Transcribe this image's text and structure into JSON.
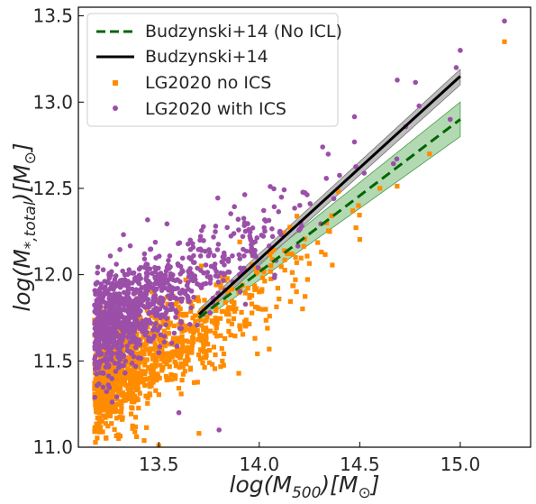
{
  "chart_data": {
    "type": "scatter",
    "title": "",
    "xlabel": "log(M500)[M⊙]",
    "ylabel": "log(M*,total)[M⊙]",
    "xlim": [
      13.1,
      15.35
    ],
    "ylim": [
      11.0,
      13.55
    ],
    "xticks": [
      "13.5",
      "14.0",
      "14.5",
      "15.0"
    ],
    "yticks": [
      "11.0",
      "11.5",
      "12.0",
      "12.5",
      "13.0",
      "13.5"
    ],
    "grid": false,
    "legend_position": "top-left",
    "legend": [
      {
        "label": "Budzynski+14 (No ICL)"
      },
      {
        "label": "Budzynski+14"
      },
      {
        "label": "LG2020 no ICS"
      },
      {
        "label": "LG2020 with ICS"
      }
    ],
    "colors": {
      "no_icl_line": "#006400",
      "no_icl_band": "#7fbf7f",
      "budzynski_line": "#000000",
      "budzynski_band": "#9a9a9a",
      "no_ics": "#ff8c00",
      "with_ics": "#9b4fa8"
    },
    "fits": [
      {
        "name": "Budzynski+14 (No ICL)",
        "style": "dashed",
        "x": [
          13.7,
          15.0
        ],
        "y": [
          11.75,
          12.9
        ],
        "band_lower": [
          11.72,
          12.8
        ],
        "band_upper": [
          11.79,
          13.0
        ]
      },
      {
        "name": "Budzynski+14",
        "style": "solid",
        "x": [
          13.7,
          15.0
        ],
        "y": [
          11.77,
          13.15
        ],
        "band_lower": [
          11.74,
          13.1
        ],
        "band_upper": [
          11.8,
          13.19
        ]
      }
    ],
    "series": [
      {
        "name": "LG2020 no ICS",
        "marker": "square",
        "n_points": 1050,
        "x_range": [
          13.18,
          15.22
        ],
        "trend_slope": 0.72,
        "y_at_13_2": 11.35,
        "y_at_14_0": 11.88,
        "y_at_15_0": 12.88,
        "outliers": [
          [
            15.22,
            13.35
          ],
          [
            14.35,
            12.25
          ],
          [
            14.6,
            12.5
          ],
          [
            13.7,
            11.08
          ],
          [
            13.3,
            11.05
          ],
          [
            14.0,
            11.9
          ]
        ]
      },
      {
        "name": "LG2020 with ICS",
        "marker": "circle",
        "n_points": 1050,
        "x_range": [
          13.18,
          15.22
        ],
        "trend_slope": 0.72,
        "y_at_13_2": 11.68,
        "y_at_14_0": 12.2,
        "y_at_15_0": 13.1,
        "outliers": [
          [
            15.22,
            13.47
          ],
          [
            15.0,
            13.3
          ],
          [
            14.98,
            13.2
          ],
          [
            14.95,
            12.9
          ],
          [
            13.6,
            11.2
          ],
          [
            13.8,
            11.1
          ]
        ]
      }
    ]
  }
}
